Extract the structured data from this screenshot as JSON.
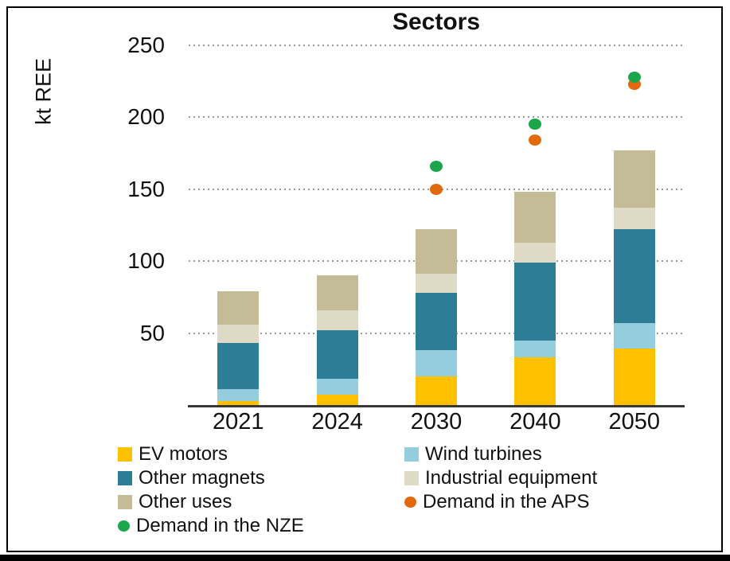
{
  "chart_data": {
    "type": "bar",
    "stacked": true,
    "title": "Sectors",
    "ylabel": "kt REE",
    "ylim": [
      0,
      250
    ],
    "yticks": [
      50,
      100,
      150,
      200,
      250
    ],
    "grid": "dotted-horizontal",
    "categories": [
      "2021",
      "2024",
      "2030",
      "2040",
      "2050"
    ],
    "series": [
      {
        "name": "EV motors",
        "render": "bar",
        "color": "#FFC000",
        "values": [
          3,
          7,
          20,
          33,
          39
        ]
      },
      {
        "name": "Wind turbines",
        "render": "bar",
        "color": "#94CEDE",
        "values": [
          8,
          11,
          18,
          12,
          18
        ]
      },
      {
        "name": "Other magnets",
        "render": "bar",
        "color": "#2E7D96",
        "values": [
          32,
          34,
          40,
          54,
          65
        ]
      },
      {
        "name": "Industrial equipment",
        "render": "bar",
        "color": "#DFDAC5",
        "values": [
          13,
          14,
          13,
          14,
          15
        ]
      },
      {
        "name": "Other uses",
        "render": "bar",
        "color": "#C4BC96",
        "values": [
          23,
          24,
          31,
          35,
          40
        ]
      },
      {
        "name": "Demand in the APS",
        "render": "scatter",
        "color": "#E3690E",
        "values": [
          null,
          null,
          150,
          184,
          223
        ]
      },
      {
        "name": "Demand in the NZE",
        "render": "scatter",
        "color": "#1BA64B",
        "values": [
          null,
          null,
          166,
          195,
          228
        ]
      }
    ],
    "totals_by_category": [
      79,
      90,
      122,
      148,
      177
    ],
    "legend_position": "bottom",
    "legend": [
      {
        "label": "EV motors",
        "marker": "square",
        "color": "#FFC000"
      },
      {
        "label": "Wind turbines",
        "marker": "square",
        "color": "#94CEDE"
      },
      {
        "label": "Other magnets",
        "marker": "square",
        "color": "#2E7D96"
      },
      {
        "label": "Industrial equipment",
        "marker": "square",
        "color": "#DFDAC5"
      },
      {
        "label": "Other uses",
        "marker": "square",
        "color": "#C4BC96"
      },
      {
        "label": "Demand in the APS",
        "marker": "circle",
        "color": "#E3690E"
      },
      {
        "label": "Demand in the NZE",
        "marker": "circle",
        "color": "#1BA64B"
      }
    ],
    "axis_colors": {
      "text": "#111111",
      "gridline": "#9B9B9B",
      "axis_line": "#383838"
    }
  }
}
